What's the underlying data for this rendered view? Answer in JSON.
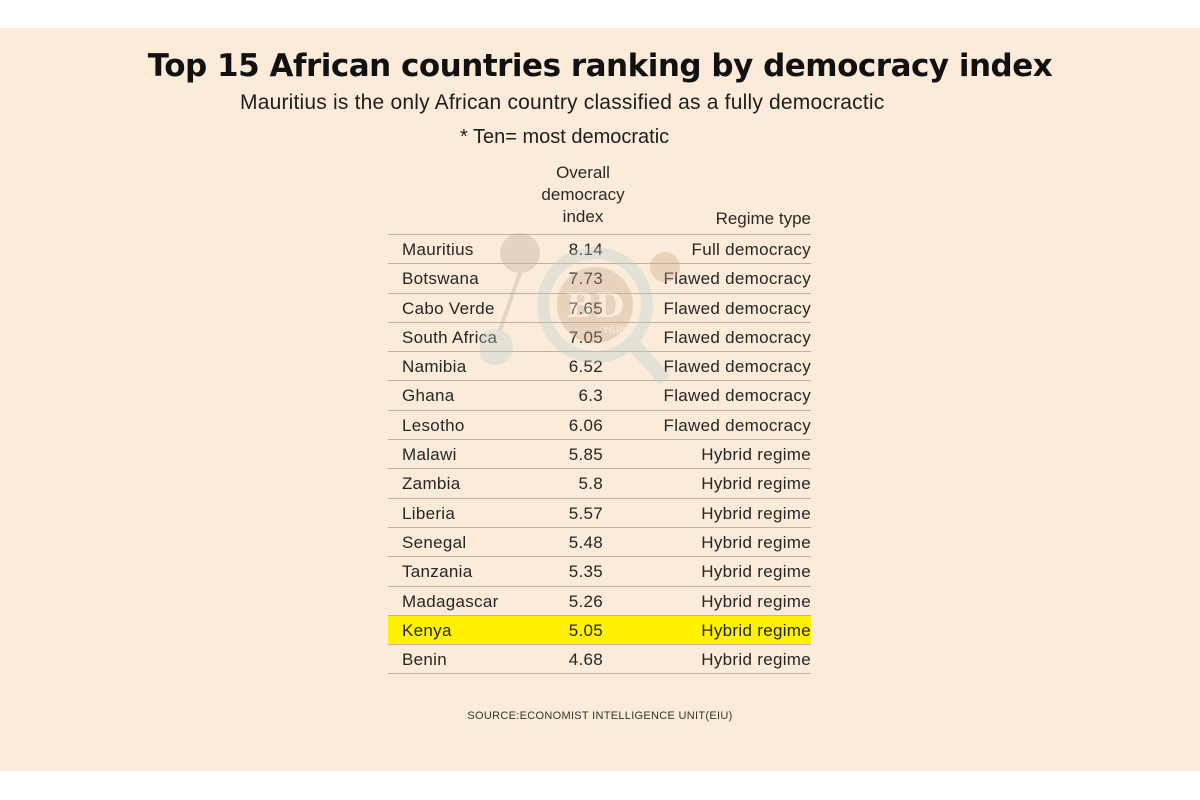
{
  "chart_data": {
    "type": "table",
    "title": "Top 15 African countries ranking by democracy index",
    "subtitle": "Mauritius is the only African country classified as a fully democractic",
    "note": "* Ten= most democratic",
    "columns": [
      "",
      "Overall democracy index",
      "Regime type"
    ],
    "rows": [
      {
        "country": "Mauritius",
        "index": "8.14",
        "regime": "Full democracy"
      },
      {
        "country": "Botswana",
        "index": "7.73",
        "regime": "Flawed democracy"
      },
      {
        "country": "Cabo Verde",
        "index": "7.65",
        "regime": "Flawed democracy"
      },
      {
        "country": "South Africa",
        "index": "7.05",
        "regime": "Flawed democracy"
      },
      {
        "country": "Namibia",
        "index": "6.52",
        "regime": "Flawed democracy"
      },
      {
        "country": "Ghana",
        "index": "6.3",
        "regime": "Flawed democracy"
      },
      {
        "country": "Lesotho",
        "index": "6.06",
        "regime": "Flawed democracy"
      },
      {
        "country": "Malawi",
        "index": "5.85",
        "regime": "Hybrid regime"
      },
      {
        "country": "Zambia",
        "index": "5.8",
        "regime": "Hybrid regime"
      },
      {
        "country": "Liberia",
        "index": "5.57",
        "regime": "Hybrid regime"
      },
      {
        "country": "Senegal",
        "index": "5.48",
        "regime": "Hybrid regime"
      },
      {
        "country": "Tanzania",
        "index": "5.35",
        "regime": "Hybrid regime"
      },
      {
        "country": "Madagascar",
        "index": "5.26",
        "regime": "Hybrid regime"
      },
      {
        "country": "Kenya",
        "index": "5.05",
        "regime": "Hybrid regime",
        "highlight": true
      },
      {
        "country": "Benin",
        "index": "4.68",
        "regime": "Hybrid regime"
      }
    ],
    "highlight_color": "#fff200",
    "background_color": "#fbebd8",
    "source": "SOURCE:ECONOMIST INTELLIGENCE UNIT(EIU)"
  },
  "header": {
    "index_line1": "Overall",
    "index_line2": "democracy",
    "index_line3": "index",
    "regime": "Regime type"
  },
  "watermark": {
    "icon": "magnifier-logo-icon",
    "letters": "BD",
    "tag": "HUB"
  }
}
